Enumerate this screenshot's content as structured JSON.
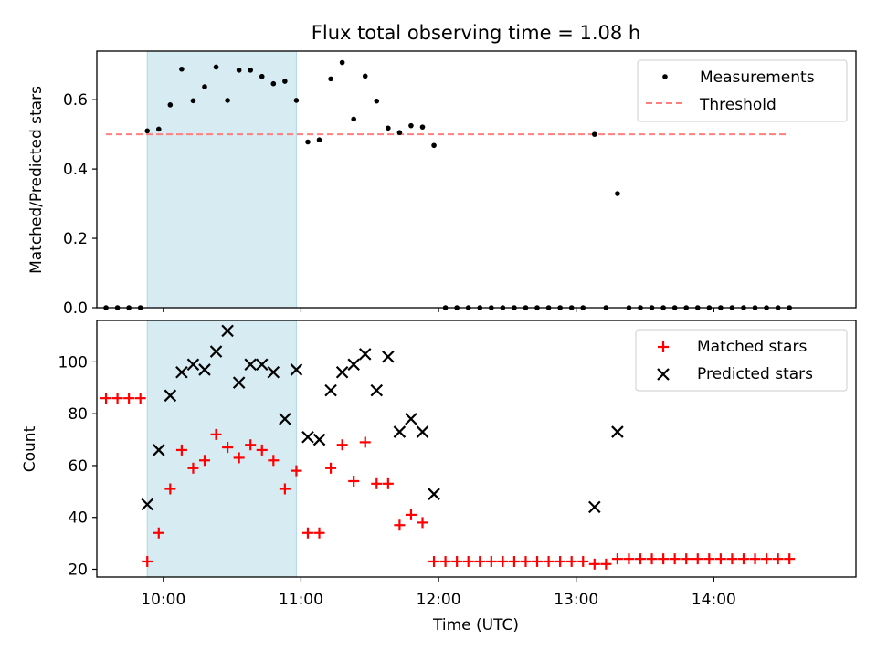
{
  "chart_data": [
    {
      "type": "scatter",
      "panel": "top",
      "title": "Flux total observing time = 1.08 h",
      "xlabel": "",
      "ylabel": "Matched/Predicted stars",
      "xlim": [
        "09:31",
        "15:02"
      ],
      "ylim": [
        0,
        0.74
      ],
      "yticks": [
        0.0,
        0.2,
        0.4,
        0.6
      ],
      "ytick_labels": [
        "0.0",
        "0.2",
        "0.4",
        "0.6"
      ],
      "grid": false,
      "legend": "top-right",
      "shaded_interval": [
        "09:53",
        "10:58"
      ],
      "series": [
        {
          "name": "Measurements",
          "kind": "scatter",
          "color": "#000000",
          "marker": "dot",
          "points": [
            [
              "09:35",
              0.0
            ],
            [
              "09:40",
              0.0
            ],
            [
              "09:45",
              0.0
            ],
            [
              "09:50",
              0.0
            ],
            [
              "09:53",
              0.51
            ],
            [
              "09:58",
              0.515
            ],
            [
              "10:03",
              0.585
            ],
            [
              "10:08",
              0.688
            ],
            [
              "10:13",
              0.597
            ],
            [
              "10:18",
              0.637
            ],
            [
              "10:23",
              0.694
            ],
            [
              "10:28",
              0.598
            ],
            [
              "10:33",
              0.685
            ],
            [
              "10:38",
              0.685
            ],
            [
              "10:43",
              0.667
            ],
            [
              "10:48",
              0.646
            ],
            [
              "10:53",
              0.653
            ],
            [
              "10:58",
              0.598
            ],
            [
              "11:03",
              0.478
            ],
            [
              "11:08",
              0.484
            ],
            [
              "11:13",
              0.66
            ],
            [
              "11:18",
              0.707
            ],
            [
              "11:23",
              0.544
            ],
            [
              "11:28",
              0.668
            ],
            [
              "11:33",
              0.596
            ],
            [
              "11:38",
              0.518
            ],
            [
              "11:43",
              0.505
            ],
            [
              "11:48",
              0.525
            ],
            [
              "11:53",
              0.521
            ],
            [
              "11:58",
              0.468
            ],
            [
              "12:03",
              0.0
            ],
            [
              "12:08",
              0.0
            ],
            [
              "12:13",
              0.0
            ],
            [
              "12:18",
              0.0
            ],
            [
              "12:23",
              0.0
            ],
            [
              "12:28",
              0.0
            ],
            [
              "12:33",
              0.0
            ],
            [
              "12:38",
              0.0
            ],
            [
              "12:43",
              0.0
            ],
            [
              "12:48",
              0.0
            ],
            [
              "12:53",
              0.0
            ],
            [
              "12:58",
              0.0
            ],
            [
              "13:03",
              0.0
            ],
            [
              "13:08",
              0.5
            ],
            [
              "13:13",
              0.0
            ],
            [
              "13:18",
              0.329
            ],
            [
              "13:23",
              0.0
            ],
            [
              "13:28",
              0.0
            ],
            [
              "13:33",
              0.0
            ],
            [
              "13:38",
              0.0
            ],
            [
              "13:43",
              0.0
            ],
            [
              "13:48",
              0.0
            ],
            [
              "13:53",
              0.0
            ],
            [
              "13:58",
              0.0
            ],
            [
              "14:03",
              0.0
            ],
            [
              "14:08",
              0.0
            ],
            [
              "14:13",
              0.0
            ],
            [
              "14:18",
              0.0
            ],
            [
              "14:23",
              0.0
            ],
            [
              "14:28",
              0.0
            ],
            [
              "14:33",
              0.0
            ]
          ]
        },
        {
          "name": "Threshold",
          "kind": "line",
          "style": "dashed",
          "color": "#ff7f7f",
          "points": [
            [
              "09:35",
              0.5
            ],
            [
              "14:33",
              0.5
            ]
          ]
        }
      ]
    },
    {
      "type": "scatter",
      "panel": "bottom",
      "title": "",
      "xlabel": "Time (UTC)",
      "ylabel": "Count",
      "xlim": [
        "09:31",
        "15:02"
      ],
      "ylim": [
        17,
        116
      ],
      "xticks": [
        "10:00",
        "11:00",
        "12:00",
        "13:00",
        "14:00"
      ],
      "yticks": [
        20,
        40,
        60,
        80,
        100
      ],
      "grid": false,
      "legend": "top-right",
      "shaded_interval": [
        "09:53",
        "10:58"
      ],
      "series": [
        {
          "name": "Matched stars",
          "marker": "plus",
          "color": "#ff0000",
          "points": [
            [
              "09:35",
              86
            ],
            [
              "09:40",
              86
            ],
            [
              "09:45",
              86
            ],
            [
              "09:50",
              86
            ],
            [
              "09:53",
              23
            ],
            [
              "09:58",
              34
            ],
            [
              "10:03",
              51
            ],
            [
              "10:08",
              66
            ],
            [
              "10:13",
              59
            ],
            [
              "10:18",
              62
            ],
            [
              "10:23",
              72
            ],
            [
              "10:28",
              67
            ],
            [
              "10:33",
              63
            ],
            [
              "10:38",
              68
            ],
            [
              "10:43",
              66
            ],
            [
              "10:48",
              62
            ],
            [
              "10:53",
              51
            ],
            [
              "10:58",
              58
            ],
            [
              "11:03",
              34
            ],
            [
              "11:08",
              34
            ],
            [
              "11:13",
              59
            ],
            [
              "11:18",
              68
            ],
            [
              "11:23",
              54
            ],
            [
              "11:28",
              69
            ],
            [
              "11:33",
              53
            ],
            [
              "11:38",
              53
            ],
            [
              "11:43",
              37
            ],
            [
              "11:48",
              41
            ],
            [
              "11:53",
              38
            ],
            [
              "11:58",
              23
            ],
            [
              "12:03",
              23
            ],
            [
              "12:08",
              23
            ],
            [
              "12:13",
              23
            ],
            [
              "12:18",
              23
            ],
            [
              "12:23",
              23
            ],
            [
              "12:28",
              23
            ],
            [
              "12:33",
              23
            ],
            [
              "12:38",
              23
            ],
            [
              "12:43",
              23
            ],
            [
              "12:48",
              23
            ],
            [
              "12:53",
              23
            ],
            [
              "12:58",
              23
            ],
            [
              "13:03",
              23
            ],
            [
              "13:08",
              22
            ],
            [
              "13:13",
              22
            ],
            [
              "13:18",
              24
            ],
            [
              "13:23",
              24
            ],
            [
              "13:28",
              24
            ],
            [
              "13:33",
              24
            ],
            [
              "13:38",
              24
            ],
            [
              "13:43",
              24
            ],
            [
              "13:48",
              24
            ],
            [
              "13:53",
              24
            ],
            [
              "13:58",
              24
            ],
            [
              "14:03",
              24
            ],
            [
              "14:08",
              24
            ],
            [
              "14:13",
              24
            ],
            [
              "14:18",
              24
            ],
            [
              "14:23",
              24
            ],
            [
              "14:28",
              24
            ],
            [
              "14:33",
              24
            ]
          ]
        },
        {
          "name": "Predicted stars",
          "marker": "x",
          "color": "#000000",
          "points": [
            [
              "09:53",
              45
            ],
            [
              "09:58",
              66
            ],
            [
              "10:03",
              87
            ],
            [
              "10:08",
              96
            ],
            [
              "10:13",
              99
            ],
            [
              "10:18",
              97
            ],
            [
              "10:23",
              104
            ],
            [
              "10:28",
              112
            ],
            [
              "10:33",
              92
            ],
            [
              "10:38",
              99
            ],
            [
              "10:43",
              99
            ],
            [
              "10:48",
              96
            ],
            [
              "10:53",
              78
            ],
            [
              "10:58",
              97
            ],
            [
              "11:03",
              71
            ],
            [
              "11:08",
              70
            ],
            [
              "11:13",
              89
            ],
            [
              "11:18",
              96
            ],
            [
              "11:23",
              99
            ],
            [
              "11:28",
              103
            ],
            [
              "11:33",
              89
            ],
            [
              "11:38",
              102
            ],
            [
              "11:43",
              73
            ],
            [
              "11:48",
              78
            ],
            [
              "11:53",
              73
            ],
            [
              "11:58",
              49
            ],
            [
              "13:08",
              44
            ],
            [
              "13:18",
              73
            ]
          ]
        }
      ]
    }
  ]
}
